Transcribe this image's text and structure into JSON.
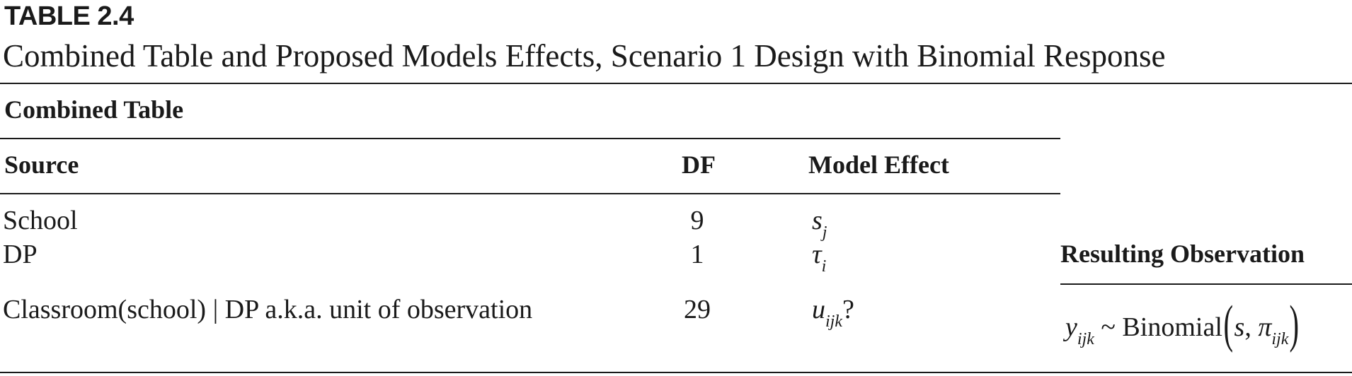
{
  "table_label": "TABLE 2.4",
  "caption": "Combined Table and Proposed Models Effects, Scenario 1 Design with Binomial Response",
  "section_title": "Combined Table",
  "columns": {
    "source": "Source",
    "df": "DF",
    "model_effect": "Model Effect",
    "resulting_observation": "Resulting Observation"
  },
  "rows": [
    {
      "source": "School",
      "df": "9",
      "effect_symbol": "s",
      "effect_subscript": "j",
      "effect_suffix": ""
    },
    {
      "source": "DP",
      "df": "1",
      "effect_symbol": "τ",
      "effect_subscript": "i",
      "effect_suffix": ""
    },
    {
      "source": "Classroom(school) | DP a.k.a. unit of observation",
      "df": "29",
      "effect_symbol": "u",
      "effect_subscript": "ijk",
      "effect_suffix": "?"
    }
  ],
  "observation": {
    "var": "y",
    "var_subscript": "ijk",
    "relation": "~ Binomial",
    "open_paren": "(",
    "arg1": "s",
    "separator": ", ",
    "arg2": "π",
    "arg2_subscript": "ijk",
    "close_paren": ")"
  }
}
